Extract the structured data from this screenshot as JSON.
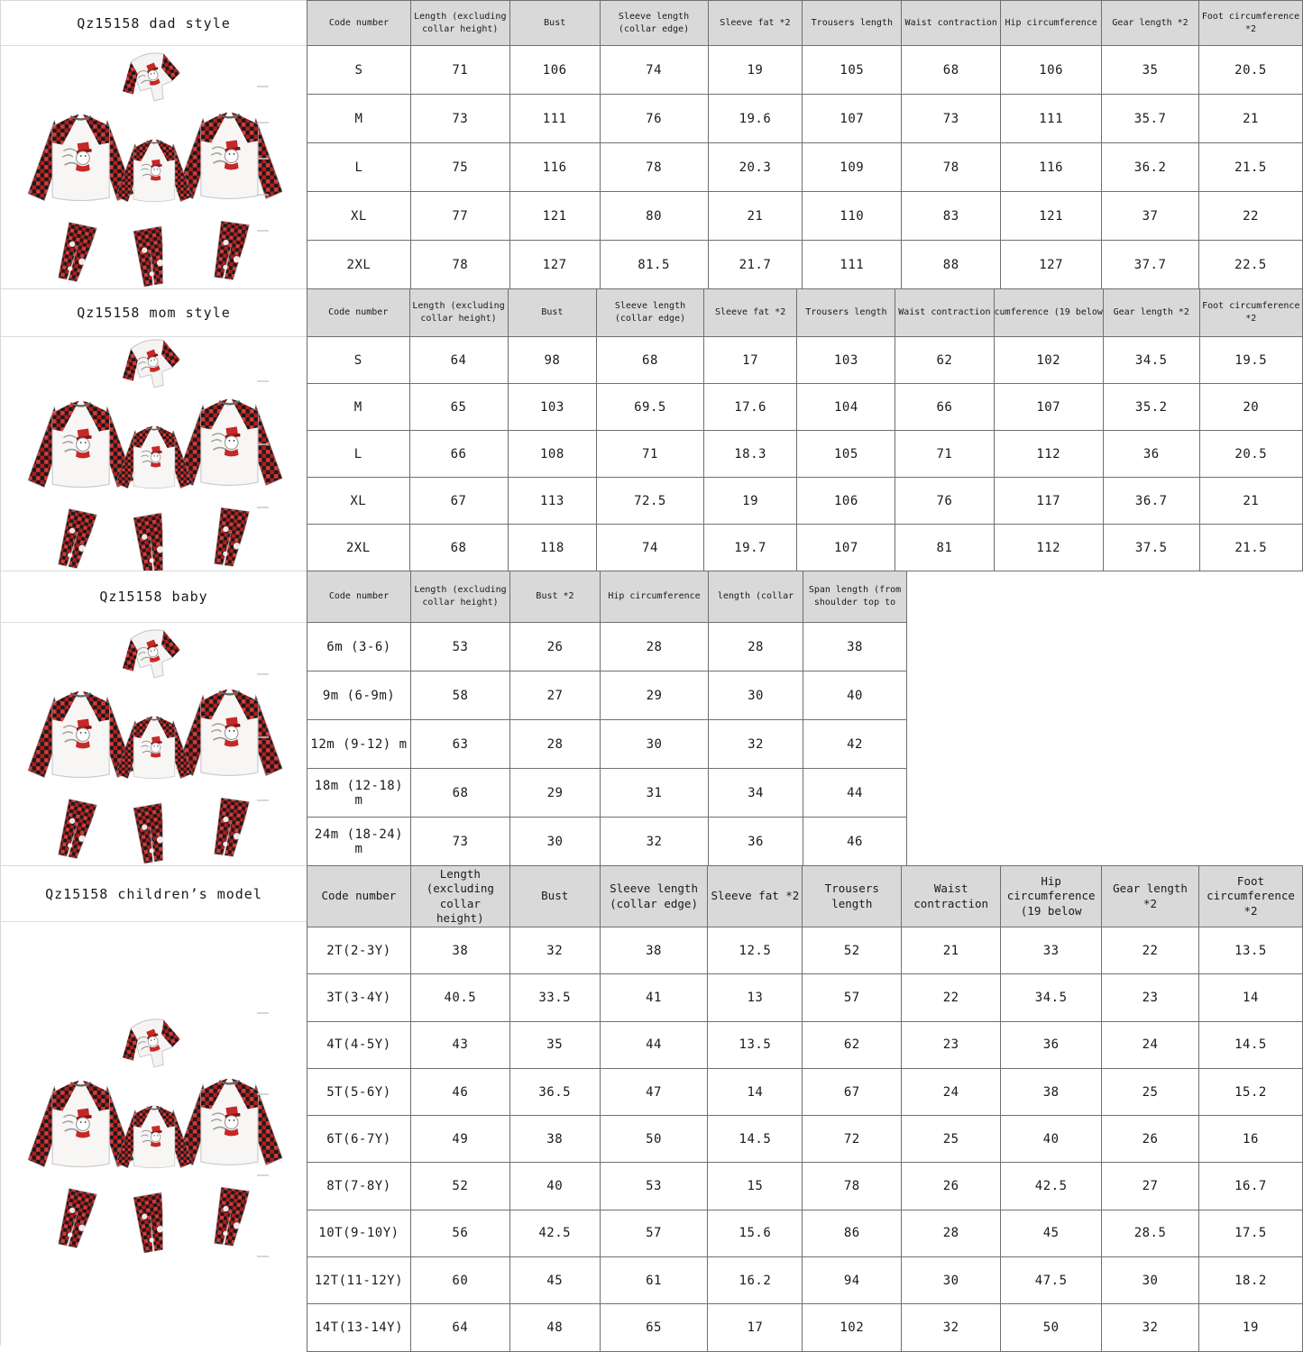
{
  "colors": {
    "header_bg": "#d9d9d9",
    "table_border": "#6f6f6f",
    "plaid_red": "#b71c1c",
    "plaid_black": "#171717",
    "shirt_white": "#f7f6f4"
  },
  "product_image": {
    "description": "family matching christmas pajama set, white raglan tops with red buffalo plaid sleeves, snowman chest print, plaid pants"
  },
  "sections": [
    {
      "title": "Qz15158 dad style",
      "columns": [
        "Code number",
        "Length (excluding collar height)",
        "Bust",
        "Sleeve length (collar edge)",
        "Sleeve fat *2",
        "Trousers length",
        "Waist contraction",
        "Hip circumference",
        "Gear length *2",
        "Foot circumference *2"
      ],
      "rows": [
        [
          "S",
          "71",
          "106",
          "74",
          "19",
          "105",
          "68",
          "106",
          "35",
          "20.5"
        ],
        [
          "M",
          "73",
          "111",
          "76",
          "19.6",
          "107",
          "73",
          "111",
          "35.7",
          "21"
        ],
        [
          "L",
          "75",
          "116",
          "78",
          "20.3",
          "109",
          "78",
          "116",
          "36.2",
          "21.5"
        ],
        [
          "XL",
          "77",
          "121",
          "80",
          "21",
          "110",
          "83",
          "121",
          "37",
          "22"
        ],
        [
          "2XL",
          "78",
          "127",
          "81.5",
          "21.7",
          "111",
          "88",
          "127",
          "37.7",
          "22.5"
        ]
      ]
    },
    {
      "title": "Qz15158 mom style",
      "columns": [
        "Code number",
        "Length (excluding collar height)",
        "Bust",
        "Sleeve length (collar edge)",
        "Sleeve fat *2",
        "Trousers length",
        "Waist contraction",
        "cumference (19 below",
        "Gear length *2",
        "Foot circumference *2"
      ],
      "rows": [
        [
          "S",
          "64",
          "98",
          "68",
          "17",
          "103",
          "62",
          "102",
          "34.5",
          "19.5"
        ],
        [
          "M",
          "65",
          "103",
          "69.5",
          "17.6",
          "104",
          "66",
          "107",
          "35.2",
          "20"
        ],
        [
          "L",
          "66",
          "108",
          "71",
          "18.3",
          "105",
          "71",
          "112",
          "36",
          "20.5"
        ],
        [
          "XL",
          "67",
          "113",
          "72.5",
          "19",
          "106",
          "76",
          "117",
          "36.7",
          "21"
        ],
        [
          "2XL",
          "68",
          "118",
          "74",
          "19.7",
          "107",
          "81",
          "112",
          "37.5",
          "21.5"
        ]
      ]
    },
    {
      "title": "Qz15158 baby",
      "columns": [
        "Code number",
        "Length (excluding collar height)",
        "Bust *2",
        "Hip circumference",
        "length (collar",
        "Span length (from shoulder top to"
      ],
      "rows": [
        [
          "6m (3-6)",
          "53",
          "26",
          "28",
          "28",
          "38"
        ],
        [
          "9m (6-9m)",
          "58",
          "27",
          "29",
          "30",
          "40"
        ],
        [
          "12m (9-12) m",
          "63",
          "28",
          "30",
          "32",
          "42"
        ],
        [
          "18m (12-18) m",
          "68",
          "29",
          "31",
          "34",
          "44"
        ],
        [
          "24m (18-24) m",
          "73",
          "30",
          "32",
          "36",
          "46"
        ]
      ]
    },
    {
      "title": "Qz15158 children’s model",
      "columns": [
        "Code number",
        "Length (excluding collar height)",
        "Bust",
        "Sleeve length (collar edge)",
        "Sleeve fat *2",
        "Trousers length",
        "Waist contraction",
        "Hip circumference (19 below",
        "Gear length *2",
        "Foot circumference *2"
      ],
      "rows": [
        [
          "2T(2-3Y)",
          "38",
          "32",
          "38",
          "12.5",
          "52",
          "21",
          "33",
          "22",
          "13.5"
        ],
        [
          "3T(3-4Y)",
          "40.5",
          "33.5",
          "41",
          "13",
          "57",
          "22",
          "34.5",
          "23",
          "14"
        ],
        [
          "4T(4-5Y)",
          "43",
          "35",
          "44",
          "13.5",
          "62",
          "23",
          "36",
          "24",
          "14.5"
        ],
        [
          "5T(5-6Y)",
          "46",
          "36.5",
          "47",
          "14",
          "67",
          "24",
          "38",
          "25",
          "15.2"
        ],
        [
          "6T(6-7Y)",
          "49",
          "38",
          "50",
          "14.5",
          "72",
          "25",
          "40",
          "26",
          "16"
        ],
        [
          "8T(7-8Y)",
          "52",
          "40",
          "53",
          "15",
          "78",
          "26",
          "42.5",
          "27",
          "16.7"
        ],
        [
          "10T(9-10Y)",
          "56",
          "42.5",
          "57",
          "15.6",
          "86",
          "28",
          "45",
          "28.5",
          "17.5"
        ],
        [
          "12T(11-12Y)",
          "60",
          "45",
          "61",
          "16.2",
          "94",
          "30",
          "47.5",
          "30",
          "18.2"
        ],
        [
          "14T(13-14Y)",
          "64",
          "48",
          "65",
          "17",
          "102",
          "32",
          "50",
          "32",
          "19"
        ]
      ]
    }
  ]
}
